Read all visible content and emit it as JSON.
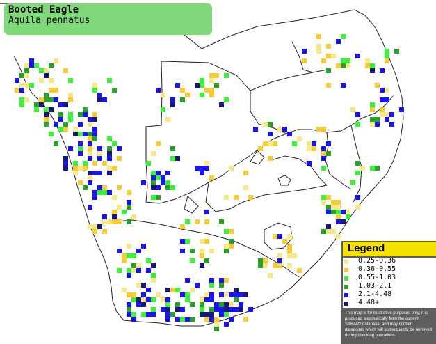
{
  "title": {
    "common_name": "Booted Eagle",
    "scientific_name": "Aquila pennatus"
  },
  "legend": {
    "title": "Legend",
    "items": [
      {
        "label": "0.25-0.36",
        "color": "#f7e98a"
      },
      {
        "label": "0.36-0.55",
        "color": "#f5cd3a"
      },
      {
        "label": "0.55-1.03",
        "color": "#3cf03c"
      },
      {
        "label": "1.03-2.1",
        "color": "#2ca02c"
      },
      {
        "label": "2.1-4.48",
        "color": "#1a14ee"
      },
      {
        "label": "4.48+",
        "color": "#18187a"
      }
    ],
    "note": "This map is for illustrative purposes only; it is produced automatically from the current SABAP2 database, and may contain datapoints which will subsequently be removed during checking operations."
  }
}
